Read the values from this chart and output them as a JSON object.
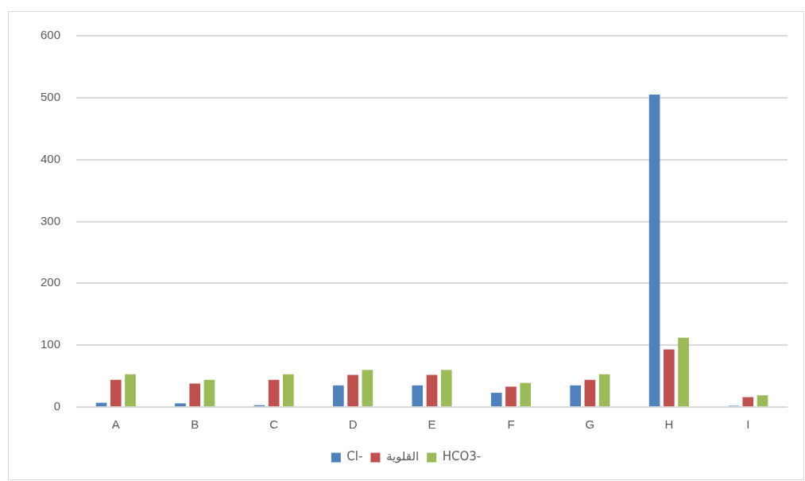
{
  "chart_data": {
    "type": "bar",
    "categories": [
      "A",
      "B",
      "C",
      "D",
      "E",
      "F",
      "G",
      "H",
      "I"
    ],
    "series": [
      {
        "name": "Cl-",
        "color": "#4f81bd",
        "values": [
          7,
          6,
          3,
          35,
          35,
          23,
          35,
          505,
          2
        ]
      },
      {
        "name": "القلوية",
        "color": "#c0504d",
        "values": [
          44,
          38,
          44,
          52,
          52,
          33,
          44,
          93,
          16
        ]
      },
      {
        "name": "HCO3-",
        "color": "#9bbb59",
        "values": [
          53,
          44,
          53,
          60,
          60,
          39,
          53,
          112,
          19
        ]
      }
    ],
    "ylim": [
      0,
      600
    ],
    "yticks": [
      0,
      100,
      200,
      300,
      400,
      500,
      600
    ],
    "grid": "y",
    "legend": "bottom"
  }
}
